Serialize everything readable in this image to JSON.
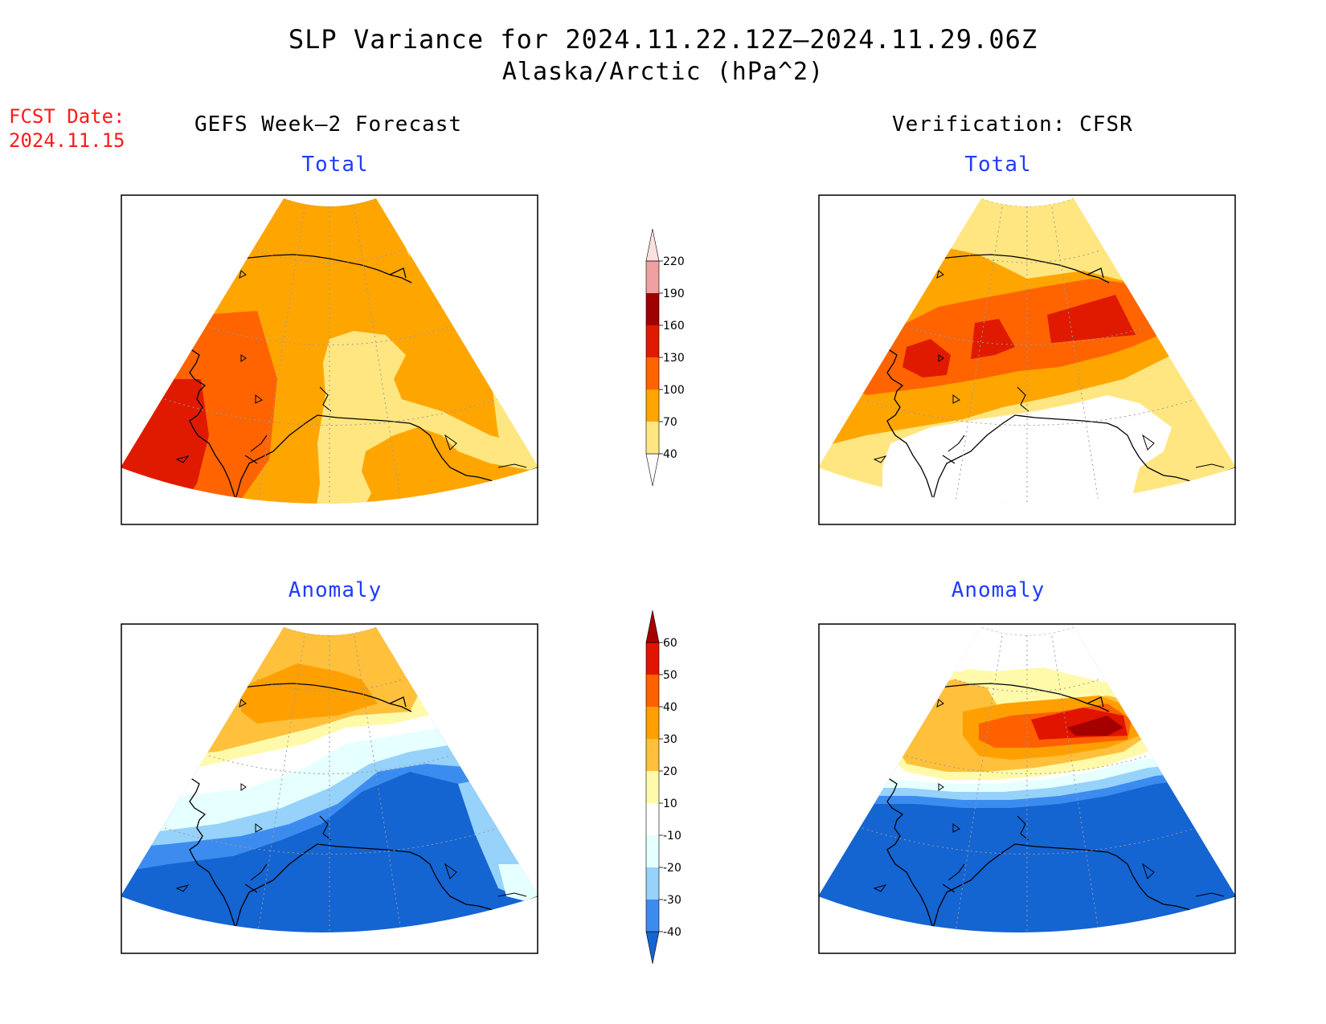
{
  "header": {
    "title": "SLP Variance for 2024.11.22.12Z–2024.11.29.06Z",
    "subtitle": "Alaska/Arctic (hPa^2)"
  },
  "fcst_date": {
    "label": "FCST Date:",
    "value": "2024.11.15"
  },
  "columns": {
    "left": "GEFS Week–2 Forecast",
    "right": "Verification: CFSR"
  },
  "panels": {
    "fcst_total": "Total",
    "cfsr_total": "Total",
    "fcst_anom": "Anomaly",
    "cfsr_anom": "Anomaly"
  },
  "colors": {
    "total": [
      "#ffe680",
      "#ffa500",
      "#ff6400",
      "#e01a00",
      "#a00000",
      "#f0a0a0",
      "#ffe0e0"
    ],
    "anomaly": [
      "#1464d2",
      "#3c8cf0",
      "#96d2fa",
      "#e6ffff",
      "#ffffff",
      "#fffaaa",
      "#ffc03c",
      "#ffa000",
      "#ff6000",
      "#e11400",
      "#a50000"
    ]
  },
  "chart_data": [
    {
      "type": "colorbar",
      "name": "total",
      "levels": [
        40,
        70,
        100,
        130,
        160,
        190,
        220
      ],
      "tick_labels": [
        "40",
        "70",
        "100",
        "130",
        "160",
        "190",
        "220"
      ]
    },
    {
      "type": "colorbar",
      "name": "anomaly",
      "levels": [
        -40,
        -30,
        -20,
        -10,
        10,
        20,
        30,
        40,
        50,
        60
      ],
      "tick_labels": [
        "-40",
        "-30",
        "-20",
        "-10",
        "10",
        "20",
        "30",
        "40",
        "50",
        "60"
      ]
    }
  ]
}
